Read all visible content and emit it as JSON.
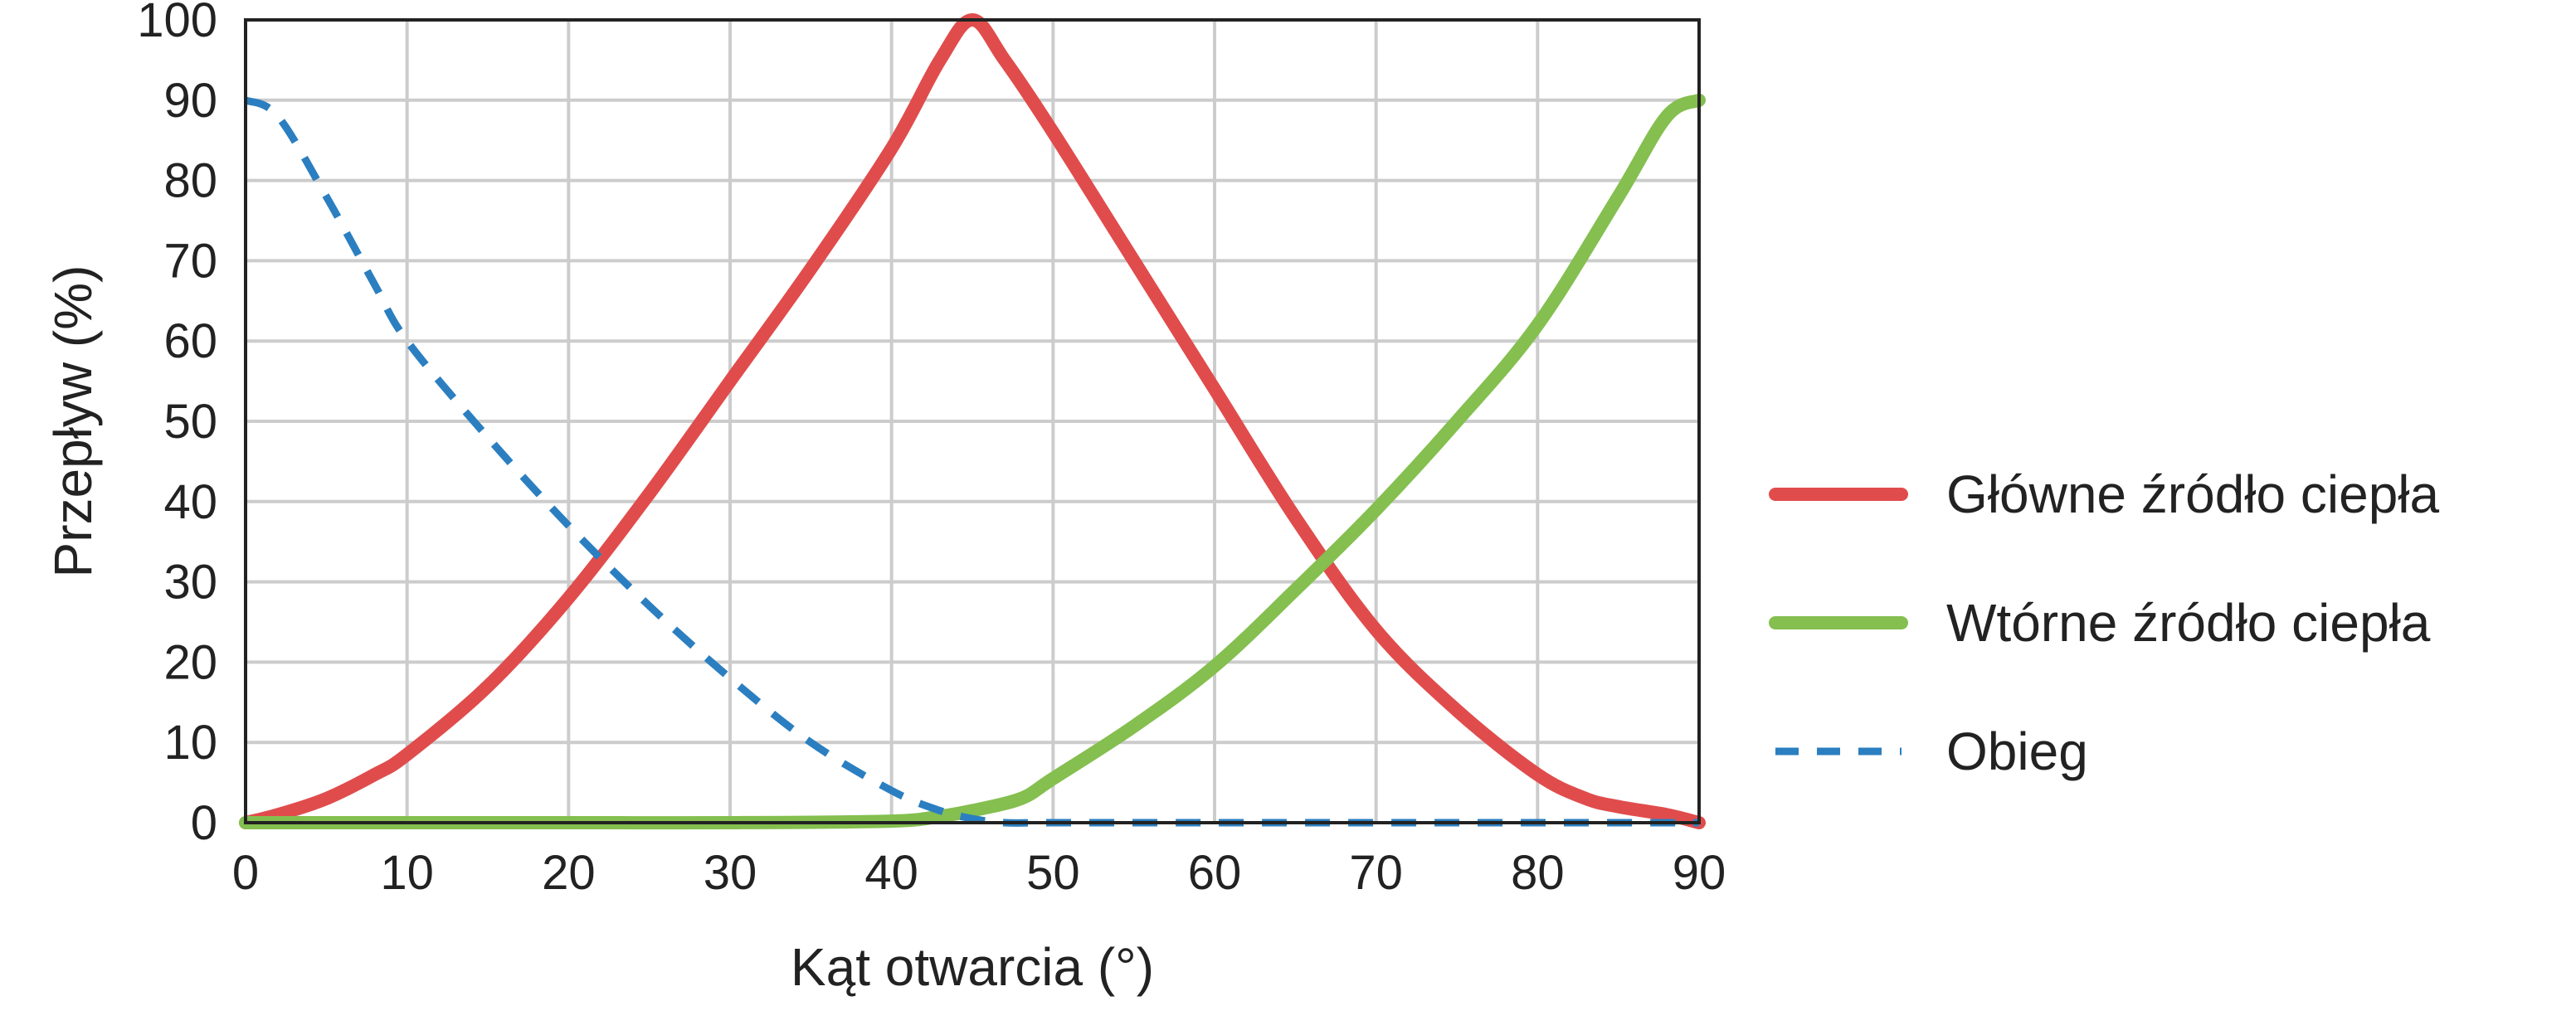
{
  "chart_data": {
    "type": "line",
    "title": "",
    "xlabel": "Kąt otwarcia (°)",
    "ylabel": "Przepływ (%)",
    "xlim": [
      0,
      90
    ],
    "ylim": [
      0,
      100
    ],
    "xticks": [
      0,
      10,
      20,
      30,
      40,
      50,
      60,
      70,
      80,
      90
    ],
    "yticks": [
      0,
      10,
      20,
      30,
      40,
      50,
      60,
      70,
      80,
      90,
      100
    ],
    "grid": true,
    "legend_position": "right",
    "series": [
      {
        "name": "Główne źródło ciepła",
        "color": "#e04c4c",
        "style": "solid",
        "x": [
          0,
          2,
          5,
          8,
          10,
          15,
          20,
          25,
          30,
          35,
          40,
          43,
          45,
          47,
          50,
          55,
          60,
          65,
          70,
          75,
          80,
          83,
          85,
          88,
          90
        ],
        "y": [
          0,
          1,
          3,
          6,
          8.5,
          17,
          28,
          41,
          55,
          69,
          84,
          95,
          100,
          95,
          86,
          70,
          54,
          38,
          24,
          14,
          6,
          3,
          2,
          1,
          0
        ]
      },
      {
        "name": "Wtórne źródło ciepła",
        "color": "#84bf4f",
        "style": "solid",
        "x": [
          0,
          10,
          20,
          30,
          40,
          43,
          45,
          48,
          50,
          55,
          60,
          65,
          70,
          75,
          80,
          85,
          88,
          90
        ],
        "y": [
          0,
          0,
          0,
          0,
          0.2,
          0.8,
          1.5,
          3,
          5.5,
          12,
          19.5,
          29,
          39,
          50,
          62,
          78,
          88,
          90
        ]
      },
      {
        "name": "Obieg",
        "color": "#2b7fc0",
        "style": "dashed",
        "x": [
          0,
          2,
          5,
          8,
          10,
          15,
          20,
          25,
          30,
          35,
          40,
          43,
          45,
          47,
          50,
          60,
          70,
          80,
          90
        ],
        "y": [
          90,
          88,
          78,
          67,
          60,
          48,
          37,
          27,
          18,
          10,
          4,
          1.5,
          0.5,
          0,
          0,
          0,
          0,
          0,
          0
        ]
      }
    ]
  }
}
